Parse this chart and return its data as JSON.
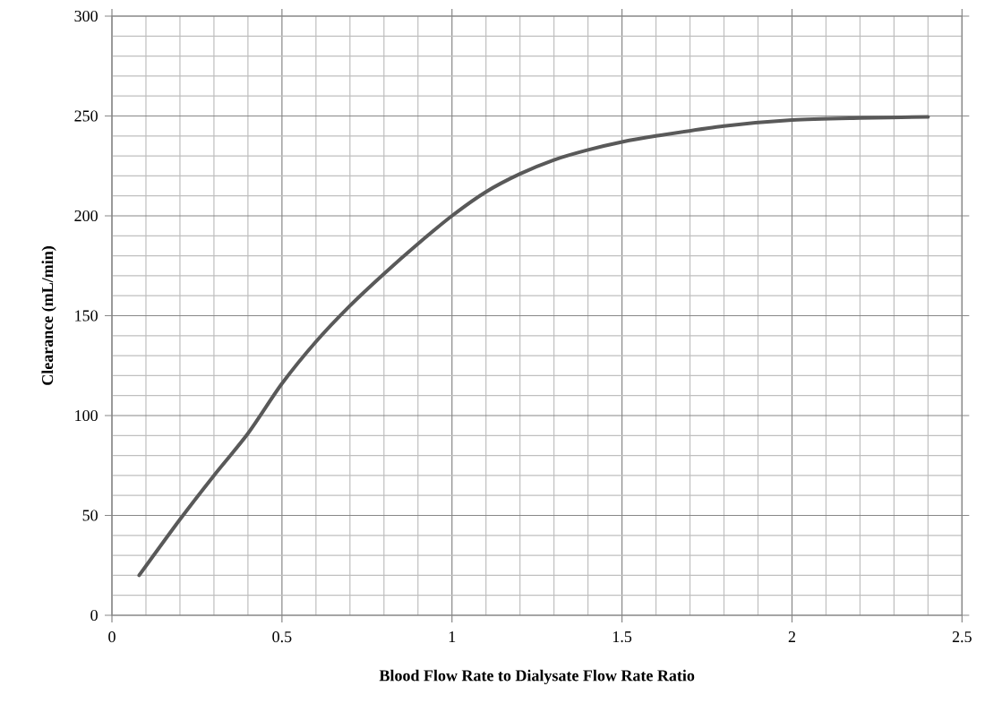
{
  "chart_data": {
    "type": "line",
    "xlabel": "Blood Flow Rate to Dialysate Flow Rate Ratio",
    "ylabel": "Clearance (mL/min)",
    "xlim": [
      0,
      2.5
    ],
    "ylim": [
      0,
      300
    ],
    "xticks": [
      0,
      0.5,
      1,
      1.5,
      2,
      2.5
    ],
    "yticks": [
      0,
      50,
      100,
      150,
      200,
      250,
      300
    ],
    "grid": true,
    "marker": "none",
    "line_style": "solid",
    "series": [
      {
        "color": "#595959",
        "x": [
          0.08,
          0.2,
          0.3,
          0.4,
          0.5,
          0.6,
          0.7,
          0.8,
          0.9,
          1.0,
          1.1,
          1.2,
          1.3,
          1.4,
          1.5,
          1.6,
          1.8,
          2.0,
          2.2,
          2.4
        ],
        "values": [
          20,
          48,
          70,
          91,
          116,
          137,
          155,
          171,
          186,
          200,
          212,
          221,
          228,
          233,
          237,
          240,
          245,
          248,
          249,
          249.5
        ]
      }
    ]
  }
}
